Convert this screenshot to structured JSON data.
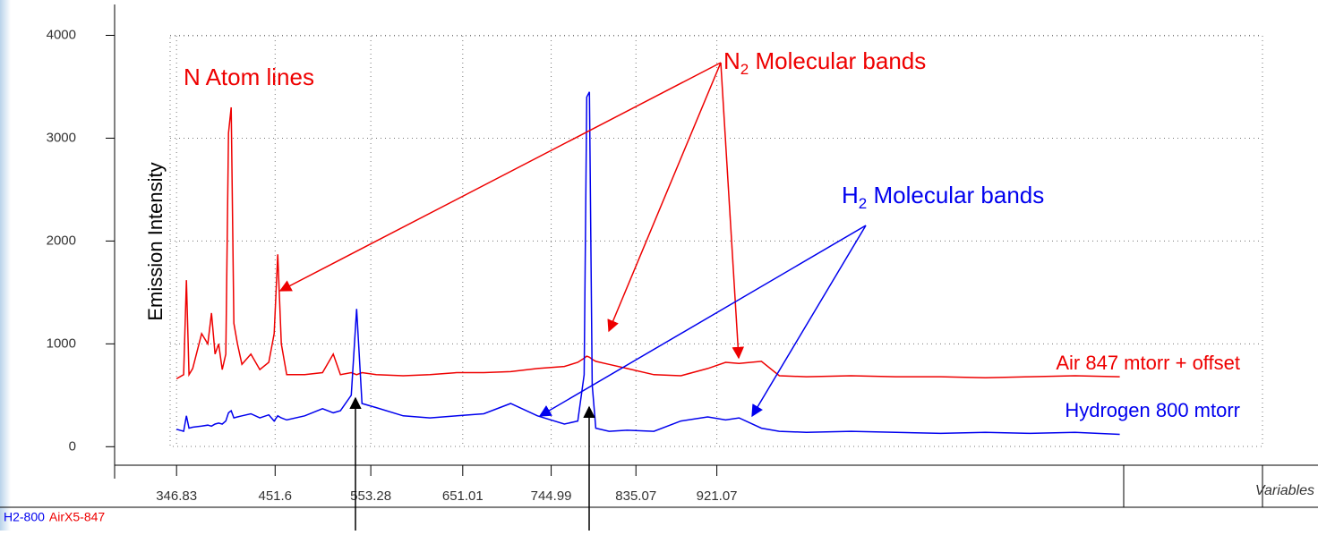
{
  "chart_data": {
    "type": "line",
    "y_label": "Emission Intensity",
    "x_label": "Variables",
    "x": [
      346.8,
      354.4,
      357.3,
      360.1,
      364,
      373.5,
      380.1,
      384,
      387.8,
      391.6,
      395.4,
      399.2,
      402,
      404.9,
      407.8,
      411.6,
      416.3,
      425.8,
      435.4,
      444.9,
      450.6,
      454.4,
      458.2,
      463.9,
      483,
      502,
      513.4,
      521,
      532.5,
      538.2,
      543.9,
      559.1,
      587.7,
      616.2,
      644.8,
      673.4,
      701.9,
      730.5,
      759,
      773.3,
      780,
      782.8,
      785.7,
      788.6,
      792.4,
      806.6,
      825.7,
      854.2,
      882.8,
      911.4,
      930.4,
      944.7,
      968.5,
      987.5,
      1016.1,
      1063.7,
      1111.3,
      1158.9,
      1206.5,
      1254.1,
      1301.7,
      1349.3
    ],
    "series": [
      {
        "name": "H2-800",
        "color": "#0000ee",
        "values": [
          170,
          150,
          300,
          180,
          190,
          200,
          210,
          200,
          220,
          230,
          220,
          250,
          330,
          350,
          280,
          290,
          300,
          320,
          280,
          310,
          250,
          300,
          280,
          260,
          300,
          370,
          330,
          350,
          500,
          1340,
          420,
          380,
          300,
          280,
          300,
          320,
          420,
          300,
          220,
          250,
          700,
          3400,
          3450,
          600,
          180,
          150,
          160,
          150,
          250,
          290,
          260,
          280,
          180,
          150,
          140,
          150,
          140,
          130,
          140,
          130,
          140,
          120
        ]
      },
      {
        "name": "AirX5-847",
        "color": "#ee0000",
        "values": [
          660,
          700,
          1620,
          700,
          760,
          1100,
          1000,
          1300,
          900,
          1000,
          750,
          900,
          3050,
          3300,
          1200,
          1000,
          800,
          900,
          750,
          820,
          1100,
          1870,
          1000,
          700,
          700,
          720,
          900,
          700,
          720,
          700,
          720,
          700,
          690,
          700,
          720,
          720,
          730,
          760,
          780,
          820,
          860,
          880,
          870,
          850,
          830,
          800,
          760,
          700,
          690,
          760,
          820,
          810,
          830,
          690,
          680,
          690,
          680,
          680,
          670,
          680,
          690,
          680
        ]
      }
    ],
    "xlim": [
      340,
      1501
    ],
    "xticks": [
      346.83,
      451.6,
      553.28,
      651.01,
      744.99,
      835.07,
      921.07
    ],
    "ylim": [
      -180,
      4300
    ],
    "yticks": [
      0,
      1000,
      2000,
      3000,
      4000
    ],
    "grid": true,
    "annotations": {
      "n_atom": "N Atom lines",
      "n2": {
        "main": "N",
        "sub": "2",
        "rest": " Molecular bands"
      },
      "h2": {
        "main": "H",
        "sub": "2",
        "rest": " Molecular bands"
      },
      "air": "Air 847 mtorr + offset",
      "hydrogen": "Hydrogen 800 mtorr"
    }
  }
}
